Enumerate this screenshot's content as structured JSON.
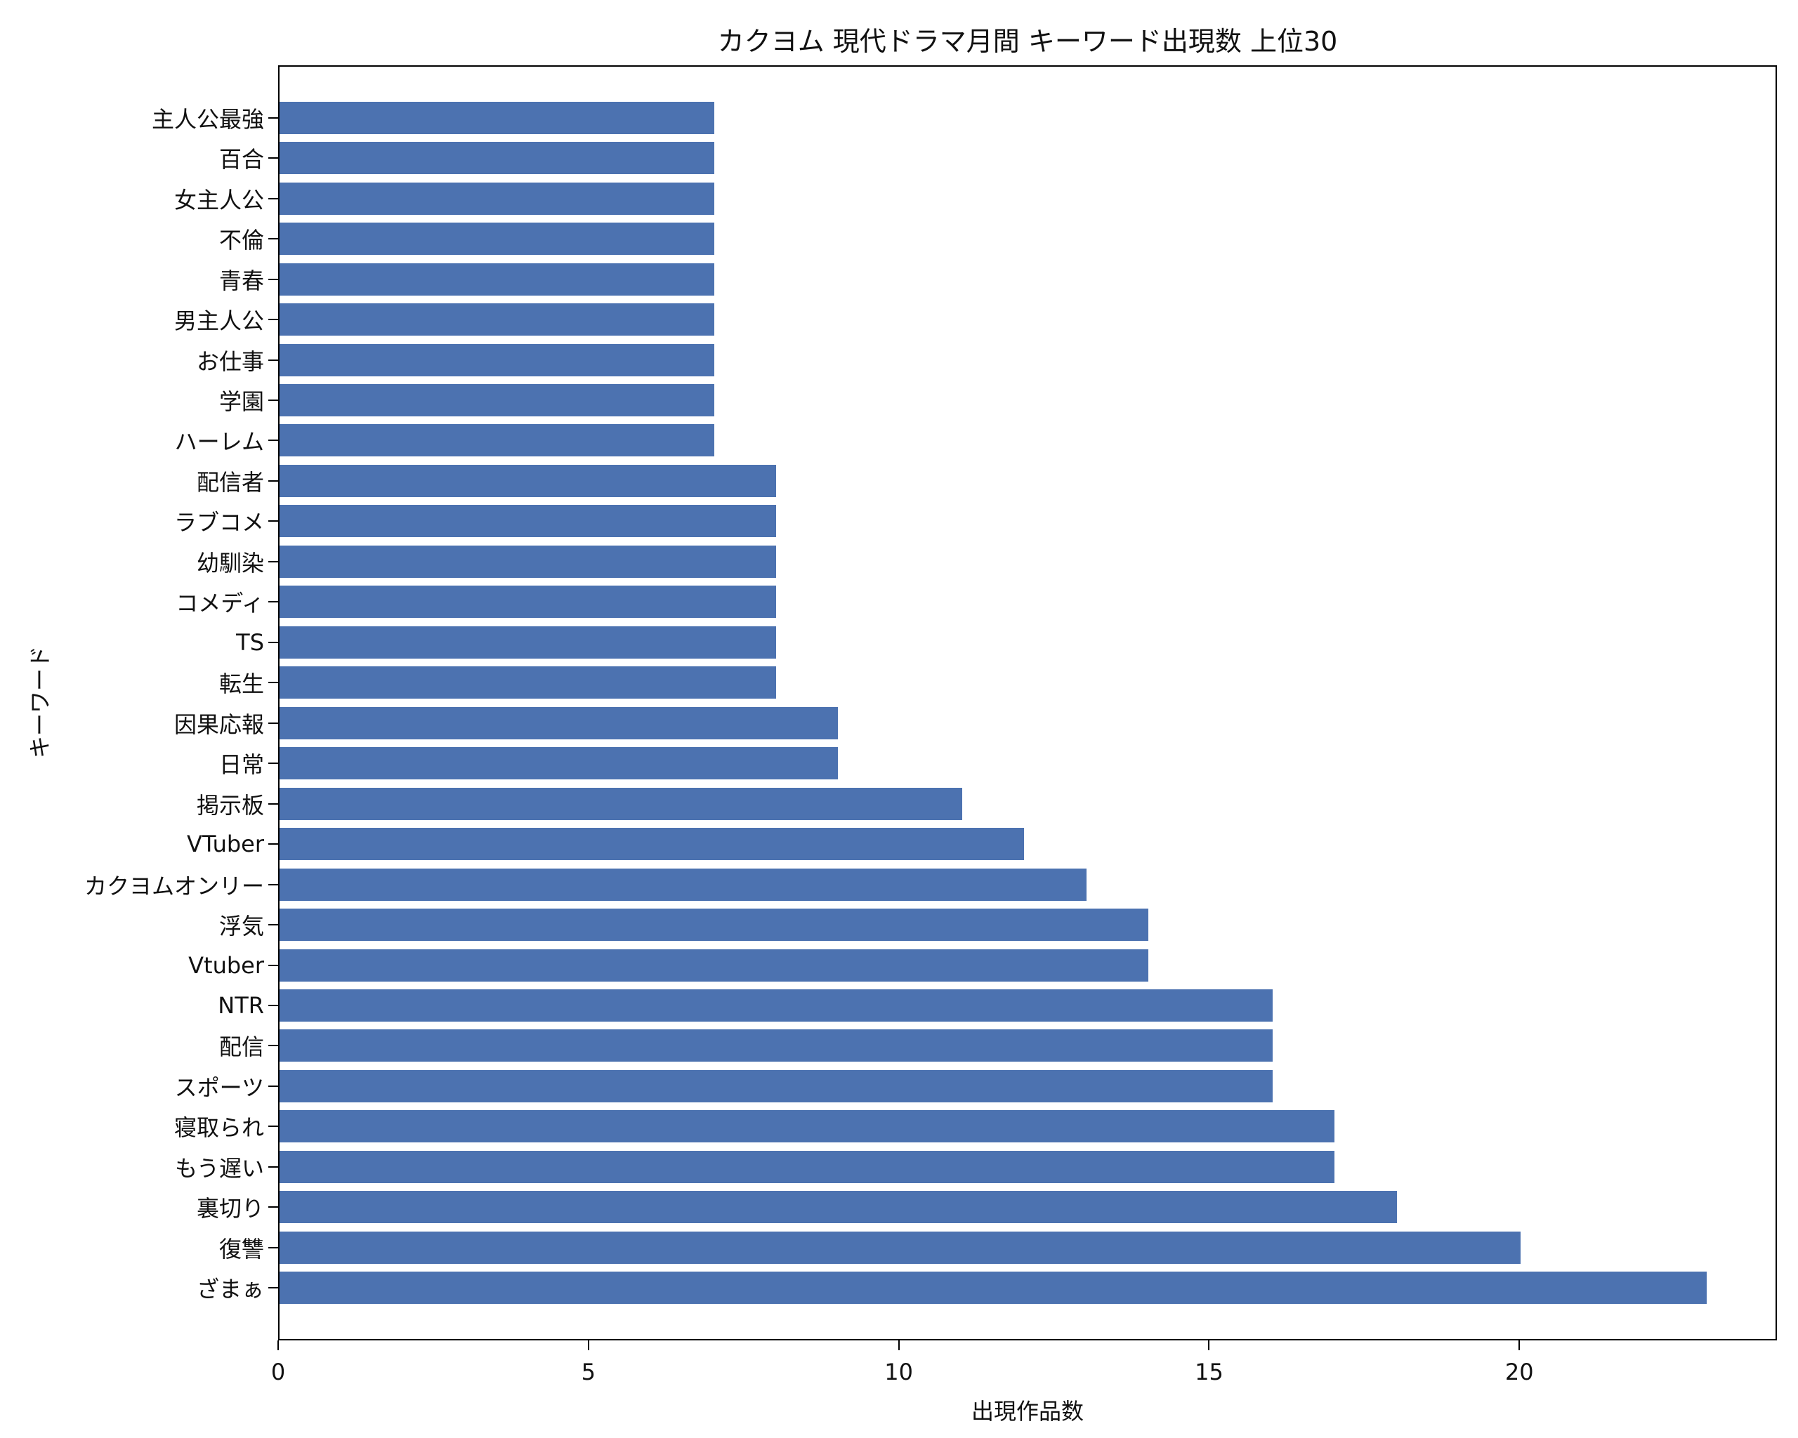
{
  "chart_data": {
    "type": "bar",
    "orientation": "horizontal",
    "title": "カクヨム 現代ドラマ月間 キーワード出現数 上位30",
    "xlabel": "出現作品数",
    "ylabel": "キーワード",
    "xlim": [
      0,
      24.15
    ],
    "xticks": [
      0,
      5,
      10,
      15,
      20
    ],
    "grid": false,
    "legend": null,
    "bar_color": "#4c72b0",
    "categories": [
      "ざまぁ",
      "復讐",
      "裏切り",
      "もう遅い",
      "寝取られ",
      "スポーツ",
      "配信",
      "NTR",
      "Vtuber",
      "浮気",
      "カクヨムオンリー",
      "VTuber",
      "掲示板",
      "日常",
      "因果応報",
      "転生",
      "TS",
      "コメディ",
      "幼馴染",
      "ラブコメ",
      "配信者",
      "ハーレム",
      "学園",
      "お仕事",
      "男主人公",
      "青春",
      "不倫",
      "女主人公",
      "百合",
      "主人公最強"
    ],
    "values": [
      23,
      20,
      18,
      17,
      17,
      16,
      16,
      16,
      14,
      14,
      13,
      12,
      11,
      9,
      9,
      8,
      8,
      8,
      8,
      8,
      8,
      7,
      7,
      7,
      7,
      7,
      7,
      7,
      7,
      7
    ]
  }
}
